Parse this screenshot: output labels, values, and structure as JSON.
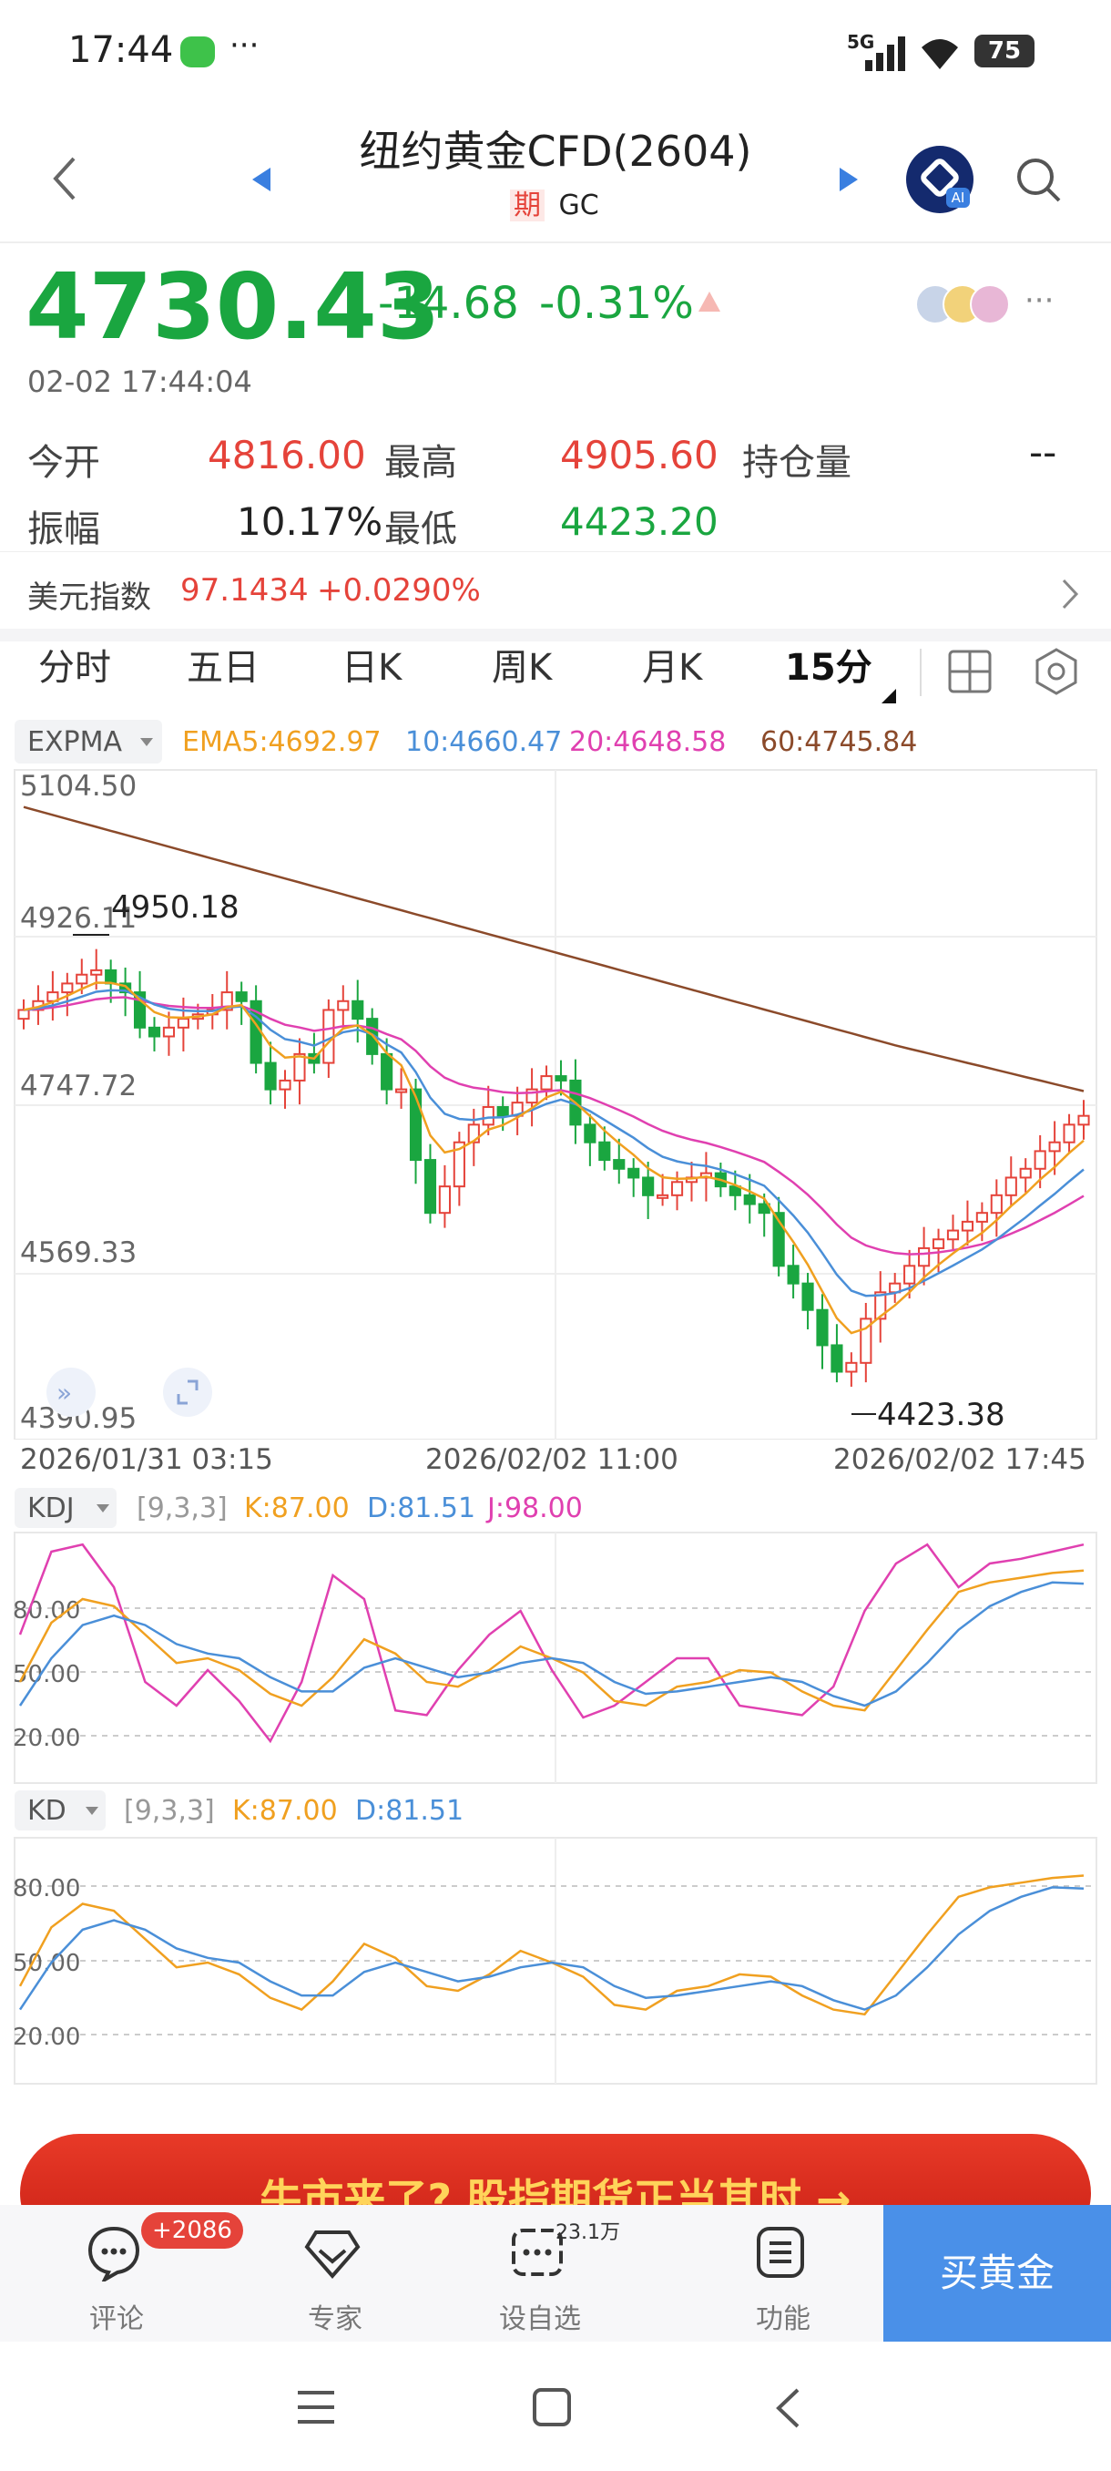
{
  "status": {
    "time": "17:44",
    "more": "···",
    "network": "5G",
    "battery": "75"
  },
  "header": {
    "title": "纽约黄金CFD(2604)",
    "badge": "期",
    "code": "GC"
  },
  "quote": {
    "price": "4730.43",
    "change": "-14.68",
    "change_pct": "-0.31%",
    "timestamp": "02-02 17:44:04",
    "open_label": "今开",
    "open": "4816.00",
    "high_label": "最高",
    "high": "4905.60",
    "oi_label": "持仓量",
    "oi": "--",
    "amp_label": "振幅",
    "amp": "10.17%",
    "low_label": "最低",
    "low": "4423.20"
  },
  "dxy": {
    "label": "美元指数",
    "value": "97.1434",
    "change": "+0.0290%"
  },
  "tabs": [
    "分时",
    "五日",
    "日K",
    "周K",
    "月K",
    "15分"
  ],
  "indicator": {
    "name": "EXPMA",
    "ema5": "EMA5:4692.97",
    "ema10": "10:4660.47",
    "ema20": "20:4648.58",
    "ema60": "60:4745.84"
  },
  "price_axis": [
    "5104.50",
    "4926.11",
    "4747.72",
    "4569.33",
    "4390.95"
  ],
  "max_label": "4950.18",
  "min_label": "4423.38",
  "time_axis": [
    "2026/01/31 03:15",
    "2026/02/02 11:00",
    "2026/02/02 17:45"
  ],
  "kdj": {
    "name": "KDJ",
    "params": "[9,3,3]",
    "k": "K:87.00",
    "d": "D:81.51",
    "j": "J:98.00"
  },
  "kd": {
    "name": "KD",
    "params": "[9,3,3]",
    "k": "K:87.00",
    "d": "D:81.51"
  },
  "osc_axis": [
    "80.00",
    "50.00",
    "20.00"
  ],
  "banner": {
    "text": "牛市来了? 股指期货正当其时 →"
  },
  "bottom": {
    "comment": "评论",
    "comment_badge": "+2086",
    "expert": "专家",
    "watch": "设自选",
    "watch_badge": "23.1万",
    "func": "功能",
    "buy": "买黄金"
  },
  "colors": {
    "up": "#e5433a",
    "down": "#1aa640",
    "ema5": "#f0a020",
    "ema10": "#4a8fd8",
    "ema20": "#e040b0",
    "ema60": "#8b4a2a",
    "buy_bg": "#4a90e8"
  }
}
